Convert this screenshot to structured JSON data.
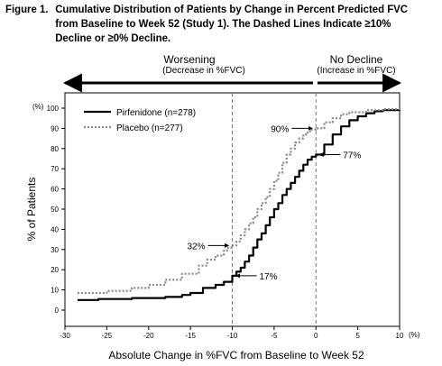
{
  "figure": {
    "label": "Figure 1.",
    "caption": "Cumulative Distribution of Patients by Change in Percent Predicted FVC from Baseline to Week 52 (Study 1). The Dashed Lines Indicate ≥10% Decline or ≥0% Decline."
  },
  "regions": {
    "left_title": "Worsening",
    "left_sub": "(Decrease in %FVC)",
    "right_title": "No Decline",
    "right_sub": "(Increase in %FVC)"
  },
  "chart_data": {
    "type": "line",
    "xlabel": "Absolute Change in %FVC from Baseline to Week 52",
    "ylabel": "% of Patients",
    "x_unit": "(%)",
    "y_unit": "(%)",
    "xlim": [
      -30,
      10
    ],
    "ylim": [
      0,
      100
    ],
    "x_ticks": [
      -30,
      -25,
      -20,
      -15,
      -10,
      -5,
      0,
      5,
      10
    ],
    "y_ticks": [
      0,
      10,
      20,
      30,
      40,
      50,
      60,
      70,
      80,
      90,
      100
    ],
    "grid": false,
    "legend_position": "top-left",
    "reference_lines_x": [
      -10,
      0
    ],
    "series": [
      {
        "name": "Pirfenidone (n=278)",
        "style": "solid",
        "color": "#000000",
        "x": [
          -28.5,
          -26,
          -22,
          -18,
          -16,
          -15,
          -13.5,
          -12,
          -11,
          -10,
          -9.5,
          -9,
          -8.5,
          -8,
          -7.5,
          -7,
          -6.5,
          -6,
          -5.5,
          -5,
          -4.5,
          -4,
          -3.5,
          -3,
          -2.5,
          -2,
          -1.5,
          -1,
          -0.5,
          0,
          1,
          2,
          3,
          4,
          5,
          6,
          7,
          8,
          10
        ],
        "y": [
          5,
          5.5,
          6,
          6.5,
          7.5,
          8.5,
          11,
          12.5,
          14,
          17,
          19,
          21,
          24,
          27,
          31,
          35,
          38,
          42,
          46,
          50,
          53,
          57,
          60,
          63,
          66,
          69,
          72,
          74.5,
          76,
          77,
          82,
          87,
          91,
          94,
          96,
          97.5,
          98.5,
          99,
          99.5
        ]
      },
      {
        "name": "Placebo (n=277)",
        "style": "dotted",
        "color": "#888888",
        "x": [
          -28.5,
          -25,
          -22,
          -20,
          -18,
          -16,
          -14,
          -13,
          -12,
          -11,
          -10.5,
          -10,
          -9.5,
          -9,
          -8.5,
          -8,
          -7.5,
          -7,
          -6.5,
          -6,
          -5.5,
          -5,
          -4.5,
          -4,
          -3.5,
          -3,
          -2.5,
          -2,
          -1.5,
          -1,
          -0.5,
          0,
          1,
          2,
          3,
          4,
          6,
          8,
          10
        ],
        "y": [
          8.5,
          9.5,
          11,
          12.5,
          15,
          18,
          22,
          25,
          27,
          29.5,
          31,
          32,
          34,
          37,
          40,
          43,
          46,
          50,
          53,
          56,
          60,
          64,
          68,
          73,
          77,
          80,
          83,
          85,
          87,
          88.5,
          89.5,
          90,
          93,
          95,
          97,
          98,
          99,
          99.5,
          100
        ]
      }
    ],
    "annotations": [
      {
        "text": "32%",
        "series": "Placebo (n=277)",
        "x": -10,
        "y": 32
      },
      {
        "text": "17%",
        "series": "Pirfenidone (n=278)",
        "x": -10,
        "y": 17
      },
      {
        "text": "90%",
        "series": "Placebo (n=277)",
        "x": 0,
        "y": 90
      },
      {
        "text": "77%",
        "series": "Pirfenidone (n=278)",
        "x": 0,
        "y": 77
      }
    ]
  }
}
